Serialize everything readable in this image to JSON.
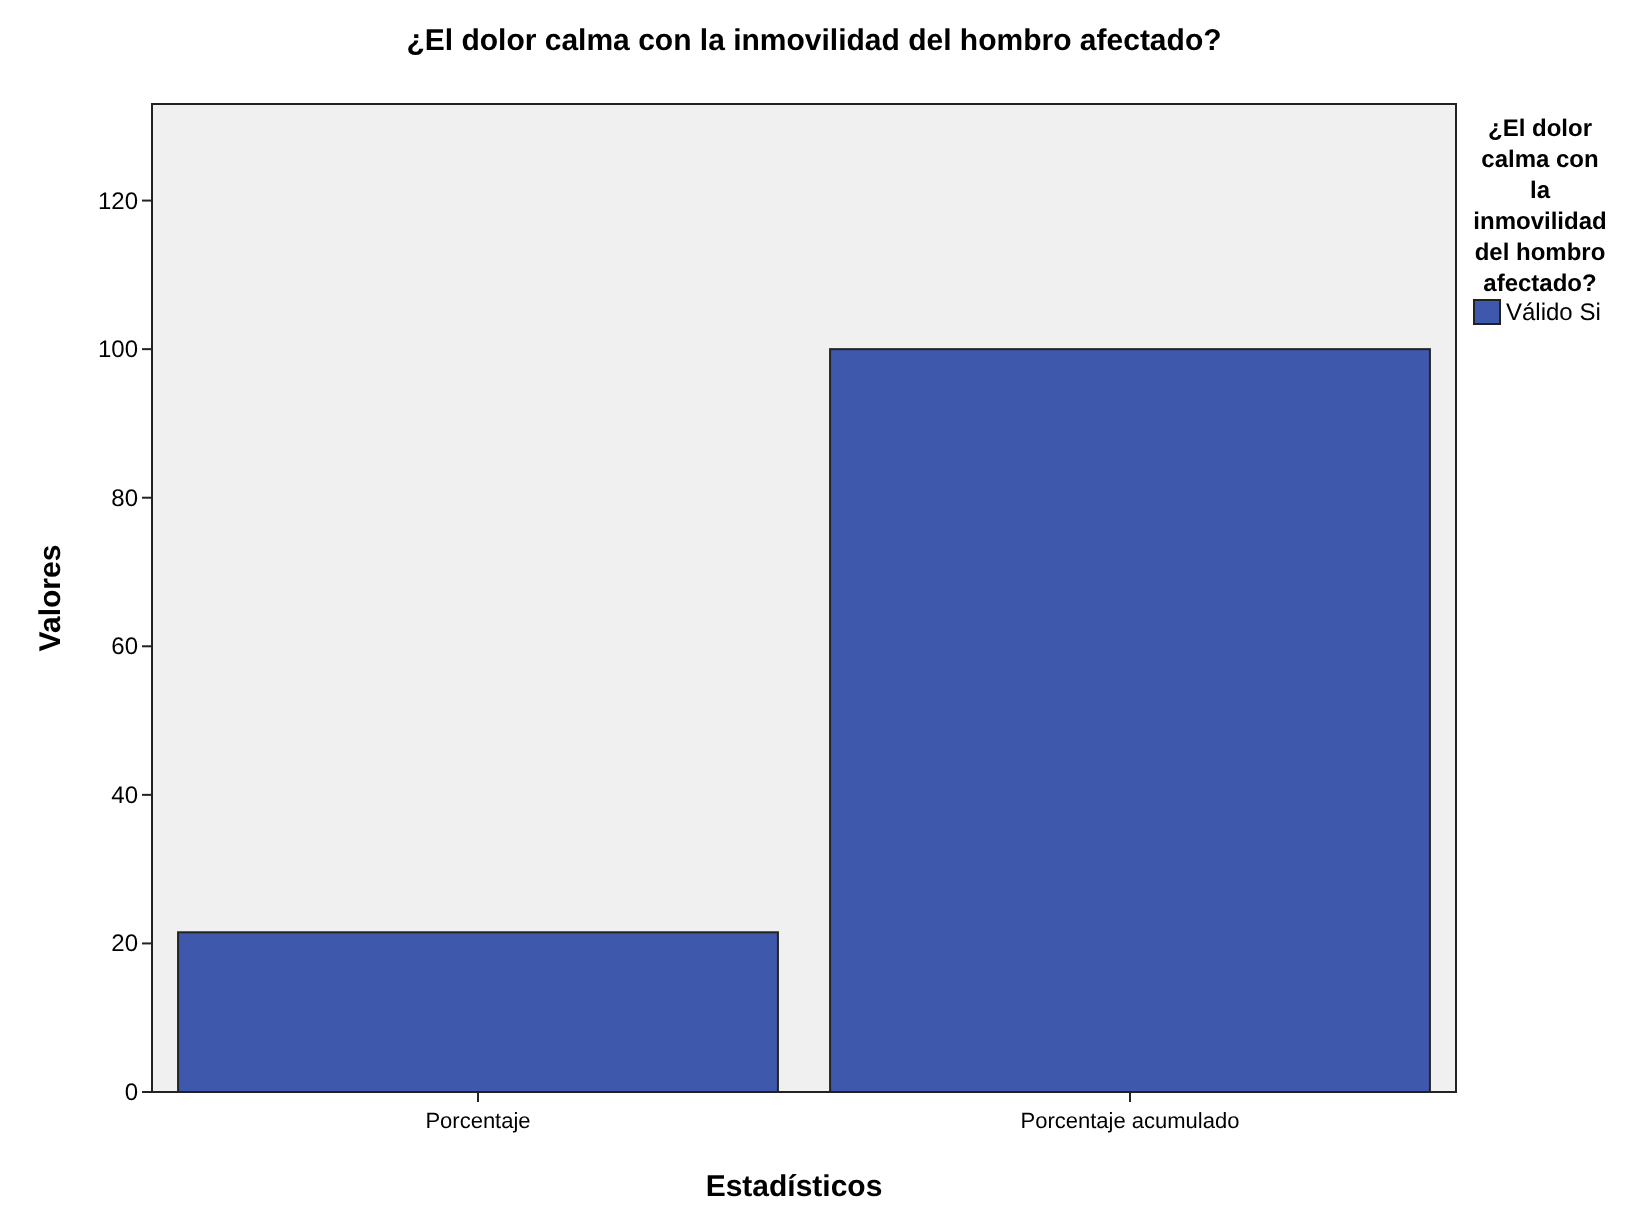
{
  "chart_data": {
    "type": "bar",
    "title": "¿El dolor calma con la inmovilidad del hombro afectado?",
    "xlabel": "Estadísticos",
    "ylabel": "Valores",
    "legend_title": "¿El dolor calma con la inmovilidad del hombro afectado?",
    "categories": [
      "Porcentaje",
      "Porcentaje acumulado"
    ],
    "series": [
      {
        "name": "Válido Si",
        "color": "#3e58ac",
        "values": [
          21.5,
          100
        ]
      }
    ],
    "ylim": [
      0,
      133
    ],
    "yticks": [
      0,
      20,
      40,
      60,
      80,
      100,
      120
    ],
    "grid": false,
    "legend": "right"
  }
}
